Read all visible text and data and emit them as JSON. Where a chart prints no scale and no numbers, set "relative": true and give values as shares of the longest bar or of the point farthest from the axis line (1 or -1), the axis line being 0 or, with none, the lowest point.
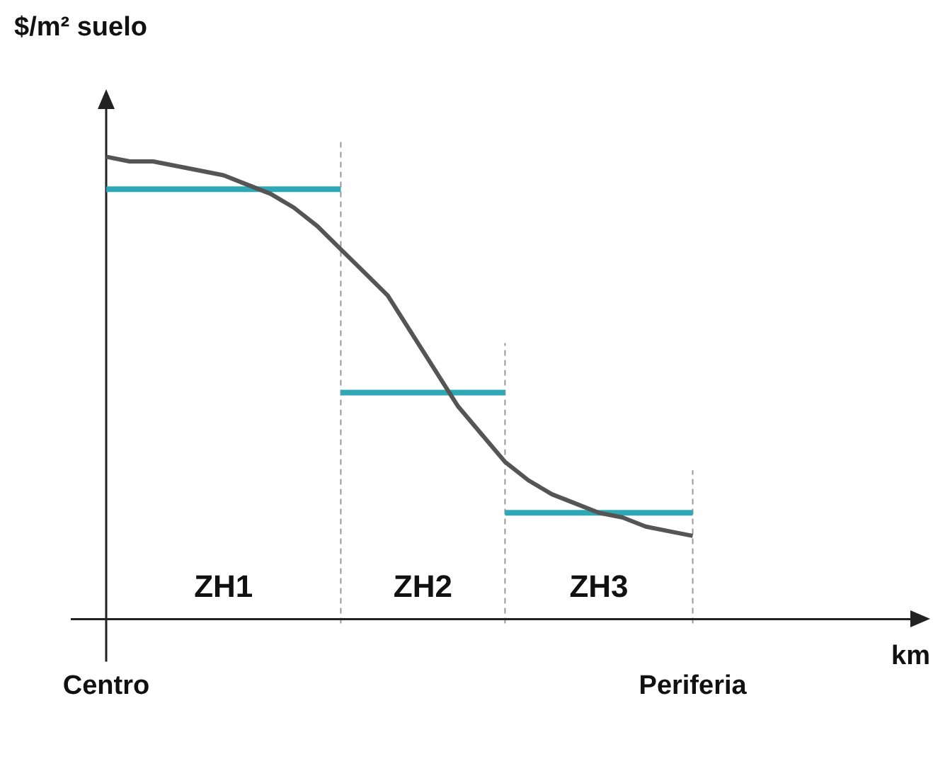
{
  "chart_data": {
    "type": "line",
    "relative": true,
    "ylabel": "$/m² suelo",
    "xlabel": "km",
    "categories": [
      "Centro",
      null,
      null,
      null,
      null,
      null,
      null,
      null,
      null,
      null,
      null,
      null,
      null,
      null,
      null,
      null,
      null,
      null,
      null,
      null,
      null,
      null,
      null,
      null,
      null,
      "Periferia",
      null,
      null,
      null,
      null,
      null,
      null,
      null,
      null,
      null,
      null
    ],
    "series": [
      {
        "color": "#555555",
        "values": [
          1,
          0.99,
          0.99,
          0.98,
          0.97,
          0.96,
          0.94,
          0.92,
          0.89,
          0.85,
          0.8,
          0.75,
          0.7,
          0.62,
          0.54,
          0.46,
          0.4,
          0.34,
          0.3,
          0.27,
          0.25,
          0.23,
          0.22,
          0.2,
          0.19,
          0.18,
          null,
          null,
          null,
          null,
          null,
          null,
          null,
          null,
          null,
          null
        ]
      },
      {
        "color": "#2fa8b5",
        "values": [
          0.93,
          0.93,
          0.93,
          0.93,
          0.93,
          0.93,
          0.93,
          0.93,
          0.93,
          0.93,
          0.93,
          null,
          null,
          null,
          null,
          null,
          null,
          null,
          null,
          null,
          null,
          null,
          null,
          null,
          null,
          null,
          null,
          null,
          null,
          null,
          null,
          null,
          null,
          null,
          null,
          null
        ]
      },
      {
        "color": "#2fa8b5",
        "values": [
          null,
          null,
          null,
          null,
          null,
          null,
          null,
          null,
          null,
          null,
          0.49,
          0.49,
          0.49,
          0.49,
          0.49,
          0.49,
          0.49,
          0.49,
          null,
          null,
          null,
          null,
          null,
          null,
          null,
          null,
          null,
          null,
          null,
          null,
          null,
          null,
          null,
          null,
          null,
          null
        ]
      },
      {
        "color": "#2fa8b5",
        "values": [
          null,
          null,
          null,
          null,
          null,
          null,
          null,
          null,
          null,
          null,
          null,
          null,
          null,
          null,
          null,
          null,
          null,
          0.23,
          0.23,
          0.23,
          0.23,
          0.23,
          0.23,
          0.23,
          0.23,
          0.23,
          null,
          null,
          null,
          null,
          null,
          null,
          null,
          null,
          null,
          null
        ]
      }
    ],
    "ref_lines": [
      {
        "axis": "x",
        "value": "Periferia",
        "color": "#999999",
        "line_style": "dashed"
      }
    ],
    "annotations": [
      "ZH1",
      "ZH2",
      "ZH3"
    ]
  }
}
